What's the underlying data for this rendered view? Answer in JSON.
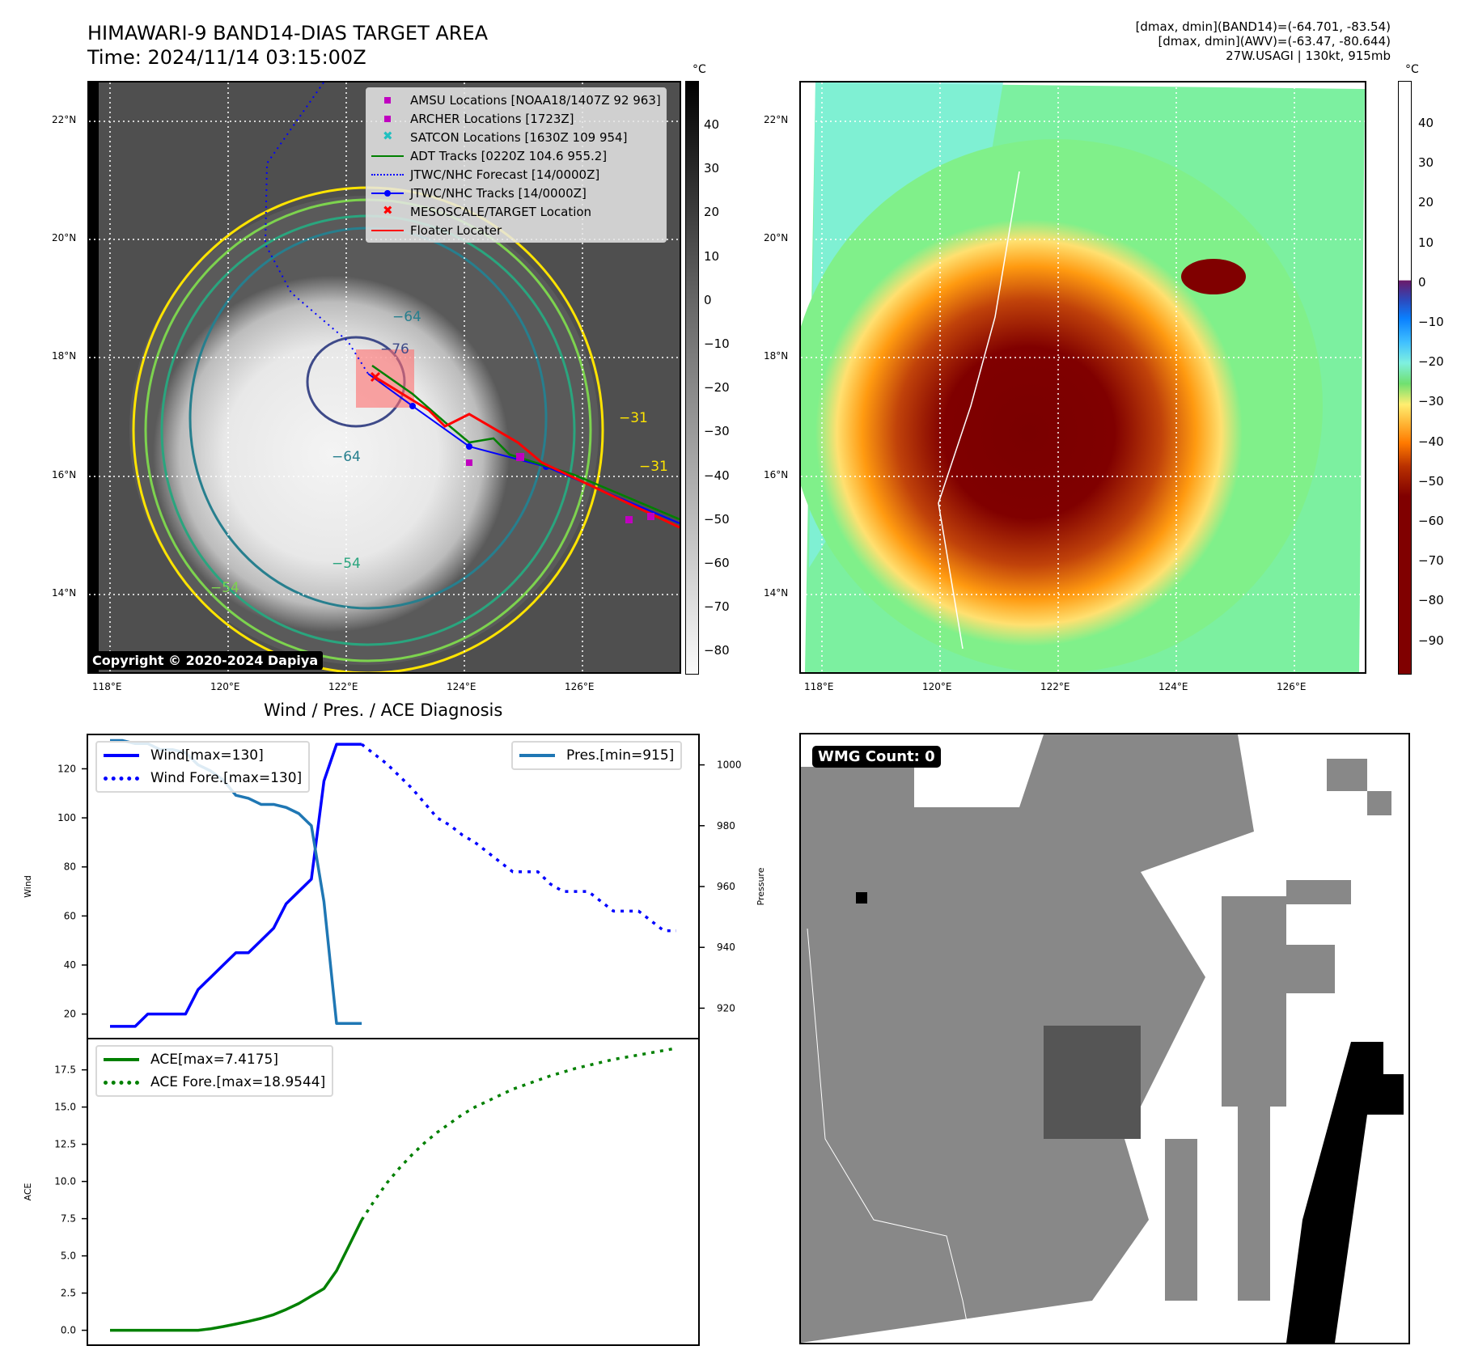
{
  "header": {
    "title_line1": "HIMAWARI-9 BAND14-DIAS TARGET AREA",
    "title_line2": "Time: 2024/11/14 03:15:00Z",
    "stats_line1": "[dmax, dmin](BAND14)=(-64.701, -83.54)",
    "stats_line2": "[dmax, dmin](AWV)=(-63.47, -80.644)",
    "stats_line3": "27W.USAGI | 130kt, 915mb"
  },
  "maps": {
    "lat_labels": [
      "22°N",
      "20°N",
      "18°N",
      "16°N",
      "14°N"
    ],
    "lon_labels": [
      "118°E",
      "120°E",
      "122°E",
      "124°E",
      "126°E"
    ],
    "unit": "°C",
    "left_colorbar_ticks": [
      "40",
      "30",
      "20",
      "10",
      "0",
      "−10",
      "−20",
      "−30",
      "−40",
      "−50",
      "−60",
      "−70",
      "−80"
    ],
    "right_colorbar_ticks": [
      "40",
      "30",
      "20",
      "10",
      "0",
      "−10",
      "−20",
      "−30",
      "−40",
      "−50",
      "−60",
      "−70",
      "−80",
      "−90"
    ],
    "contour_labels": [
      "−64",
      "−76",
      "−64",
      "−54",
      "−54",
      "−31",
      "−31"
    ],
    "copyright": "Copyright © 2020-2024 Dapiya",
    "legend": [
      {
        "label": "AMSU Locations [NOAA18/1407Z 92 963]",
        "icon": "magenta-square",
        "color": "#c000c0"
      },
      {
        "label": "ARCHER Locations [1723Z]",
        "icon": "magenta-square",
        "color": "#c000c0"
      },
      {
        "label": "SATCON Locations [1630Z 109 954]",
        "icon": "cyan-x",
        "color": "#20c0c0"
      },
      {
        "label": "ADT Tracks [0220Z 104.6 955.2]",
        "icon": "green-line",
        "color": "#008000"
      },
      {
        "label": "JTWC/NHC Forecast [14/0000Z]",
        "icon": "blue-dotted-line",
        "color": "#0000ff"
      },
      {
        "label": "JTWC/NHC Tracks [14/0000Z]",
        "icon": "blue-line-dot",
        "color": "#0000ff"
      },
      {
        "label": "MESOSCALE/TARGET Location",
        "icon": "red-x",
        "color": "#ff0000"
      },
      {
        "label": "Floater Locater",
        "icon": "red-line",
        "color": "#ff0000"
      }
    ]
  },
  "wmg": {
    "badge": "WMG Count: 0"
  },
  "chart_data": [
    {
      "type": "line",
      "title": "Wind / Pres. / ACE Diagnosis",
      "ylabel": "Wind",
      "ylabel_right": "Pressure",
      "ylim": [
        10,
        134
      ],
      "ylim_right": [
        910,
        1010
      ],
      "yticks": [
        20,
        40,
        60,
        80,
        100,
        120
      ],
      "yticks_right": [
        920,
        940,
        960,
        980,
        1000
      ],
      "legend_left": [
        "Wind[max=130]",
        "Wind Fore.[max=130]"
      ],
      "legend_right": [
        "Pres.[min=915]"
      ],
      "x": [
        0,
        1,
        2,
        3,
        4,
        5,
        6,
        7,
        8,
        9,
        10,
        11,
        12,
        13,
        14,
        15,
        16,
        17,
        18,
        19,
        20,
        21,
        22,
        23,
        24,
        25,
        26,
        27,
        28,
        29,
        30,
        31,
        32,
        33,
        34,
        35,
        36,
        37,
        38,
        39,
        40,
        41,
        42,
        43,
        44,
        45
      ],
      "series": [
        {
          "name": "Wind[max=130]",
          "color": "#0000ff",
          "style": "solid",
          "x": [
            0,
            1,
            2,
            3,
            4,
            5,
            6,
            7,
            8,
            9,
            10,
            11,
            12,
            13,
            14,
            15,
            16,
            17,
            18,
            19,
            20
          ],
          "values": [
            15,
            15,
            15,
            20,
            20,
            20,
            20,
            30,
            35,
            40,
            45,
            45,
            50,
            55,
            65,
            70,
            75,
            115,
            130,
            130,
            130
          ]
        },
        {
          "name": "Wind Fore.[max=130]",
          "color": "#0000ff",
          "style": "dotted",
          "x": [
            20,
            21,
            22,
            23,
            24,
            25,
            26,
            27,
            28,
            29,
            30,
            31,
            32,
            33,
            34,
            35,
            36,
            37,
            38,
            39,
            40,
            41,
            42,
            43,
            44,
            45
          ],
          "values": [
            130,
            126,
            122,
            117,
            112,
            106,
            100,
            97,
            93,
            90,
            86,
            82,
            78,
            78,
            78,
            73,
            70,
            70,
            70,
            66,
            62,
            62,
            62,
            58,
            54,
            54
          ]
        },
        {
          "name": "Pres.[min=915]",
          "color": "#1f77b4",
          "style": "solid",
          "axis": "right",
          "x": [
            0,
            1,
            2,
            3,
            4,
            5,
            6,
            7,
            8,
            9,
            10,
            11,
            12,
            13,
            14,
            15,
            16,
            17,
            18,
            19,
            20
          ],
          "values": [
            1008,
            1008,
            1007,
            1007,
            1005,
            1005,
            1004,
            1000,
            998,
            995,
            990,
            989,
            987,
            987,
            986,
            984,
            980,
            955,
            915,
            915,
            915
          ]
        }
      ]
    },
    {
      "type": "line",
      "ylabel": "ACE",
      "ylim": [
        -1,
        19.6
      ],
      "yticks": [
        0.0,
        2.5,
        5.0,
        7.5,
        10.0,
        12.5,
        15.0,
        17.5
      ],
      "legend": [
        "ACE[max=7.4175]",
        "ACE Fore.[max=18.9544]"
      ],
      "series": [
        {
          "name": "ACE[max=7.4175]",
          "color": "#008000",
          "style": "solid",
          "x": [
            0,
            1,
            2,
            3,
            4,
            5,
            6,
            7,
            8,
            9,
            10,
            11,
            12,
            13,
            14,
            15,
            16,
            17,
            18,
            19,
            20
          ],
          "values": [
            0,
            0,
            0,
            0,
            0,
            0,
            0,
            0,
            0.1,
            0.25,
            0.42,
            0.6,
            0.8,
            1.05,
            1.4,
            1.8,
            2.3,
            2.8,
            4.0,
            5.7,
            7.4175
          ]
        },
        {
          "name": "ACE Fore.[max=18.9544]",
          "color": "#008000",
          "style": "dotted",
          "x": [
            20,
            21,
            22,
            23,
            24,
            25,
            26,
            27,
            28,
            29,
            30,
            31,
            32,
            33,
            34,
            35,
            36,
            37,
            38,
            39,
            40,
            41,
            42,
            43,
            44,
            45
          ],
          "values": [
            7.4175,
            8.7,
            9.9,
            10.9,
            11.8,
            12.6,
            13.3,
            13.9,
            14.5,
            15.0,
            15.4,
            15.8,
            16.2,
            16.5,
            16.8,
            17.1,
            17.35,
            17.6,
            17.8,
            18.0,
            18.2,
            18.35,
            18.5,
            18.65,
            18.8,
            18.9544
          ]
        }
      ]
    }
  ]
}
